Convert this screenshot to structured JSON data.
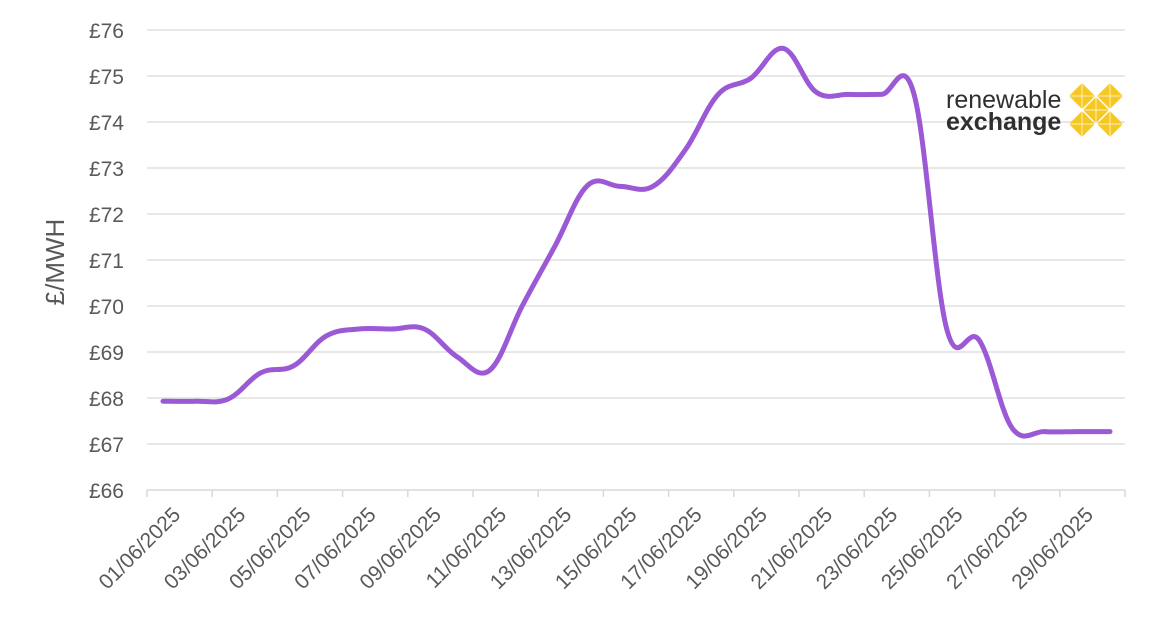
{
  "chart_data": {
    "type": "line",
    "ylabel": "£/MWH",
    "ylim": [
      66,
      76
    ],
    "y_ticks": [
      "£66",
      "£67",
      "£68",
      "£69",
      "£70",
      "£71",
      "£72",
      "£73",
      "£74",
      "£75",
      "£76"
    ],
    "x_tick_labels": [
      "01/06/2025",
      "03/06/2025",
      "05/06/2025",
      "07/06/2025",
      "09/06/2025",
      "11/06/2025",
      "13/06/2025",
      "15/06/2025",
      "17/06/2025",
      "19/06/2025",
      "21/06/2025",
      "23/06/2025",
      "25/06/2025",
      "27/06/2025",
      "29/06/2025"
    ],
    "grid": true,
    "line_color": "#9B59D6",
    "series": [
      {
        "x": [
          "01/06/2025",
          "02/06/2025",
          "03/06/2025",
          "04/06/2025",
          "05/06/2025",
          "06/06/2025",
          "07/06/2025",
          "08/06/2025",
          "09/06/2025",
          "10/06/2025",
          "11/06/2025",
          "12/06/2025",
          "13/06/2025",
          "14/06/2025",
          "15/06/2025",
          "16/06/2025",
          "17/06/2025",
          "18/06/2025",
          "19/06/2025",
          "20/06/2025",
          "21/06/2025",
          "22/06/2025",
          "23/06/2025",
          "24/06/2025",
          "25/06/2025",
          "26/06/2025",
          "27/06/2025",
          "28/06/2025",
          "29/06/2025",
          "30/06/2025"
        ],
        "values": [
          67.93,
          67.93,
          67.98,
          68.55,
          68.7,
          69.35,
          69.5,
          69.5,
          69.5,
          68.9,
          68.6,
          70.0,
          71.3,
          72.62,
          72.6,
          72.6,
          73.4,
          74.6,
          74.95,
          75.6,
          74.65,
          74.6,
          74.6,
          74.6,
          69.5,
          69.25,
          67.35,
          67.27,
          67.27,
          67.27
        ]
      }
    ]
  },
  "logo": {
    "line1": "renewable",
    "line2": "exchange",
    "accent_color": "#F5C518"
  }
}
